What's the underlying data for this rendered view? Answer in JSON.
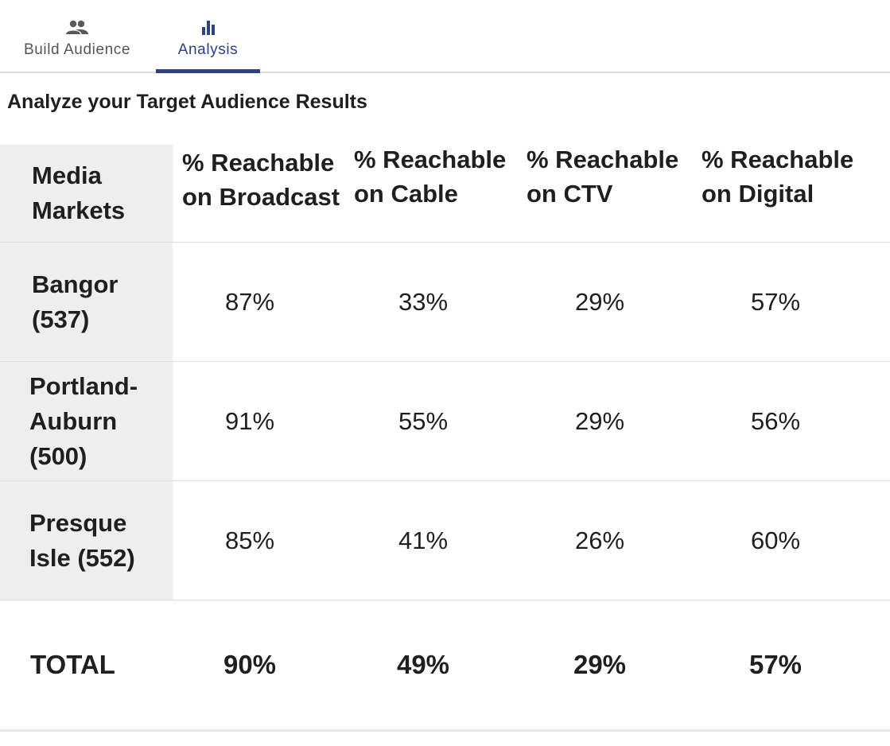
{
  "tabs": [
    {
      "label": "Build Audience",
      "icon": "people-icon",
      "active": false
    },
    {
      "label": "Analysis",
      "icon": "bar-chart-icon",
      "active": true
    }
  ],
  "colors": {
    "accent": "#2b4286",
    "header_bg": "#eeeeee",
    "divider": "#dedede"
  },
  "title": "Analyze your Target Audience Results",
  "table": {
    "columns": [
      "Media Markets",
      "% Reachable on Broadcast",
      "% Reachable on Cable",
      "% Reachable on CTV",
      "% Reachable on Digital"
    ],
    "rows": [
      {
        "market": "Bangor (537)",
        "values": [
          "87%",
          "33%",
          "29%",
          "57%"
        ]
      },
      {
        "market": "Portland-Auburn (500)",
        "values": [
          "91%",
          "55%",
          "29%",
          "56%"
        ]
      },
      {
        "market": "Presque Isle (552)",
        "values": [
          "85%",
          "41%",
          "26%",
          "60%"
        ]
      }
    ],
    "total": {
      "label": "TOTAL",
      "values": [
        "90%",
        "49%",
        "29%",
        "57%"
      ]
    }
  }
}
